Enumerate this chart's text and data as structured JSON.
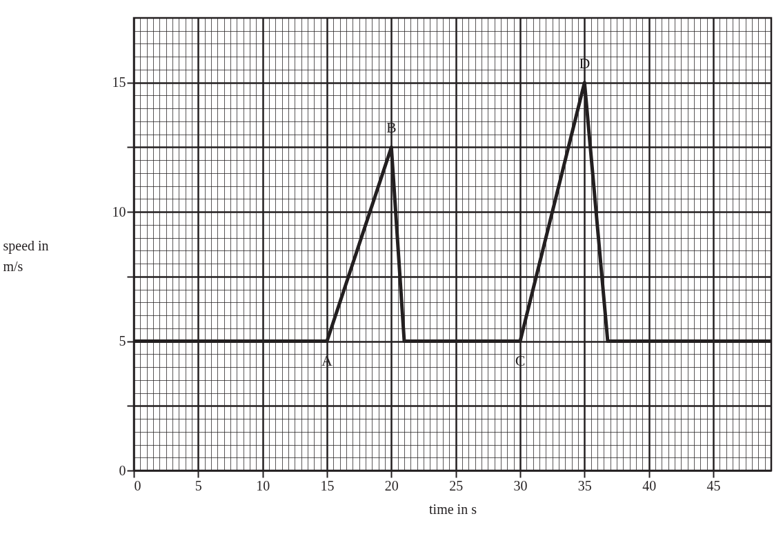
{
  "chart_data": {
    "type": "line",
    "xlabel": "time in s",
    "ylabel": "speed in m/s",
    "x": [
      0,
      15,
      20,
      21,
      30,
      35,
      36.8,
      49.5
    ],
    "series": [
      {
        "color": "#231f20",
        "values": [
          5,
          5,
          12.5,
          5,
          5,
          15,
          5,
          5
        ]
      }
    ],
    "xlim": [
      0,
      49.5
    ],
    "ylim": [
      0,
      17.5
    ],
    "xticks": [
      0,
      5,
      10,
      15,
      20,
      25,
      30,
      35,
      40,
      45
    ],
    "yticks": [
      0,
      {
        "value": 2.5,
        "label": null
      },
      5,
      {
        "value": 7.5,
        "label": null
      },
      10,
      {
        "value": 12.5,
        "label": null
      },
      15
    ],
    "annotations": [
      {
        "text": "A",
        "x": 15,
        "y": 5
      },
      {
        "text": "B",
        "x": 20,
        "y": 12.5
      },
      {
        "text": "C",
        "x": 30,
        "y": 5
      },
      {
        "text": "D",
        "x": 35,
        "y": 15
      }
    ],
    "grid": true,
    "marker": "none",
    "line_style": "solid"
  }
}
